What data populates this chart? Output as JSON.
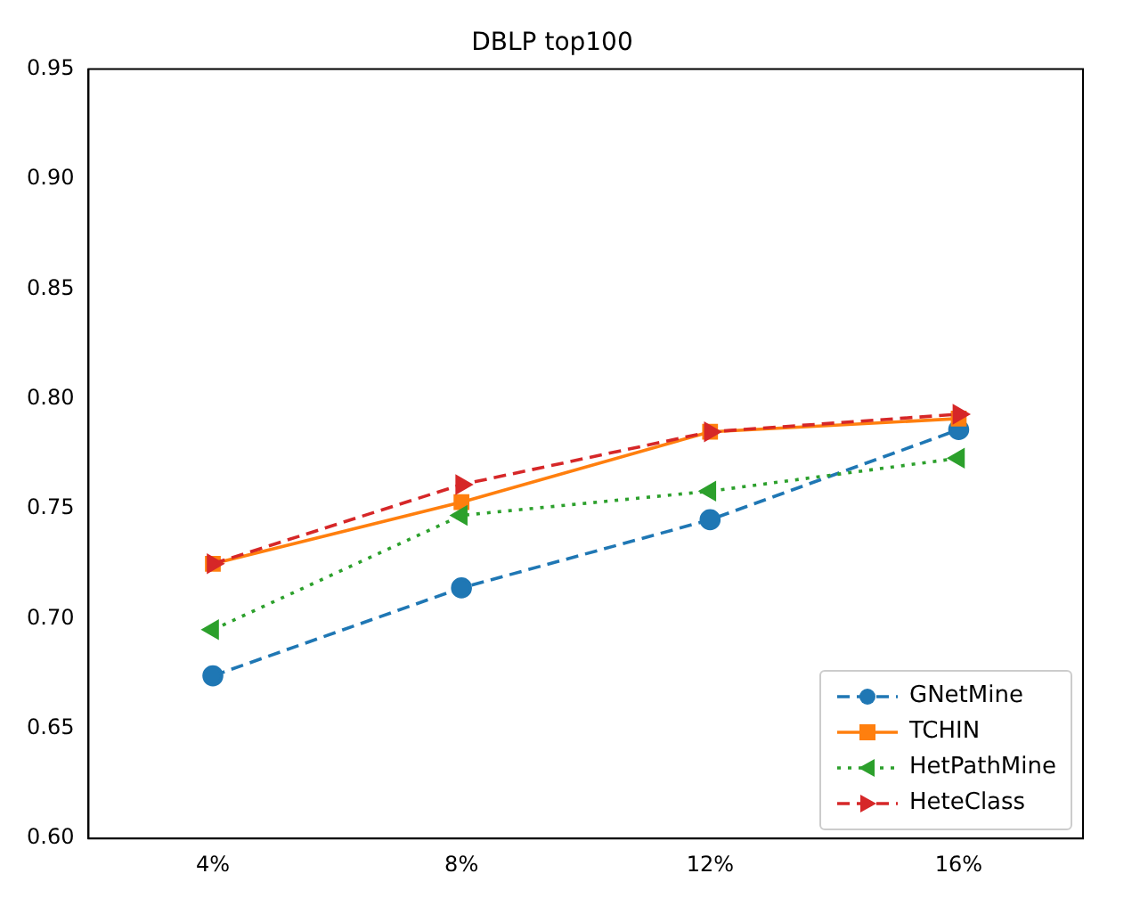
{
  "chart_data": {
    "type": "line",
    "title": "DBLP top100",
    "categories": [
      "4%",
      "8%",
      "12%",
      "16%"
    ],
    "series": [
      {
        "name": "GNetMine",
        "color": "#1f77b4",
        "values": [
          0.674,
          0.714,
          0.745,
          0.786
        ],
        "marker": "circle",
        "line_style": "dashed"
      },
      {
        "name": "TCHIN",
        "color": "#ff7f0e",
        "values": [
          0.725,
          0.753,
          0.785,
          0.791
        ],
        "marker": "square",
        "line_style": "solid"
      },
      {
        "name": "HetPathMine",
        "color": "#2ca02c",
        "values": [
          0.695,
          0.747,
          0.758,
          0.773
        ],
        "marker": "triangle-left",
        "line_style": "dotted"
      },
      {
        "name": "HeteClass",
        "color": "#d62728",
        "values": [
          0.725,
          0.761,
          0.785,
          0.793
        ],
        "marker": "triangle-right",
        "line_style": "dashed"
      }
    ],
    "ylim": [
      0.6,
      0.95
    ],
    "yticks": [
      {
        "value": 0.6,
        "label": "0.60"
      },
      0.65,
      {
        "value": 0.7,
        "label": "0.70"
      },
      0.75,
      {
        "value": 0.8,
        "label": "0.80"
      },
      0.85,
      {
        "value": 0.9,
        "label": "0.90"
      },
      0.95
    ],
    "grid": false,
    "legend": "bottom right"
  }
}
